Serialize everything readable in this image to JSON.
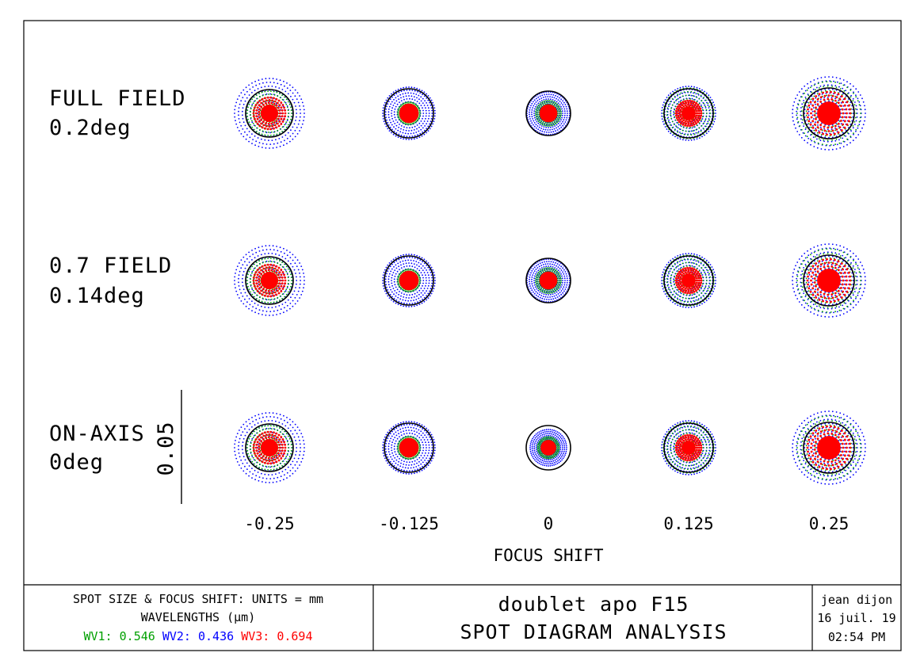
{
  "rows": [
    {
      "label_line1": "FULL FIELD",
      "label_line2": "0.2deg"
    },
    {
      "label_line1": "0.7 FIELD",
      "label_line2": "0.14deg"
    },
    {
      "label_line1": "ON-AXIS",
      "label_line2": "0deg"
    }
  ],
  "columns": [
    "-0.25",
    "-0.125",
    "0",
    "0.125",
    "0.25"
  ],
  "x_axis_label": "FOCUS SHIFT",
  "scale_bar_label": "0.05",
  "footer": {
    "units_line": "SPOT SIZE & FOCUS SHIFT: UNITS = mm",
    "wavelengths_line": "WAVELENGTHS (μm)",
    "wavelengths": [
      {
        "label": "WV1: 0.546",
        "color": "#00a000"
      },
      {
        "label": "WV2: 0.436",
        "color": "#0000ff"
      },
      {
        "label": "WV3: 0.694",
        "color": "#ff0000"
      }
    ],
    "title_line1": "doublet apo F15",
    "title_line2": "SPOT DIAGRAM ANALYSIS",
    "author": "jean dijon",
    "date": "16 juil. 19",
    "time": "02:54 PM"
  },
  "colors": {
    "wv1": "#00a000",
    "wv2": "#0000ff",
    "wv3": "#ff0000",
    "frame": "#000000"
  }
}
